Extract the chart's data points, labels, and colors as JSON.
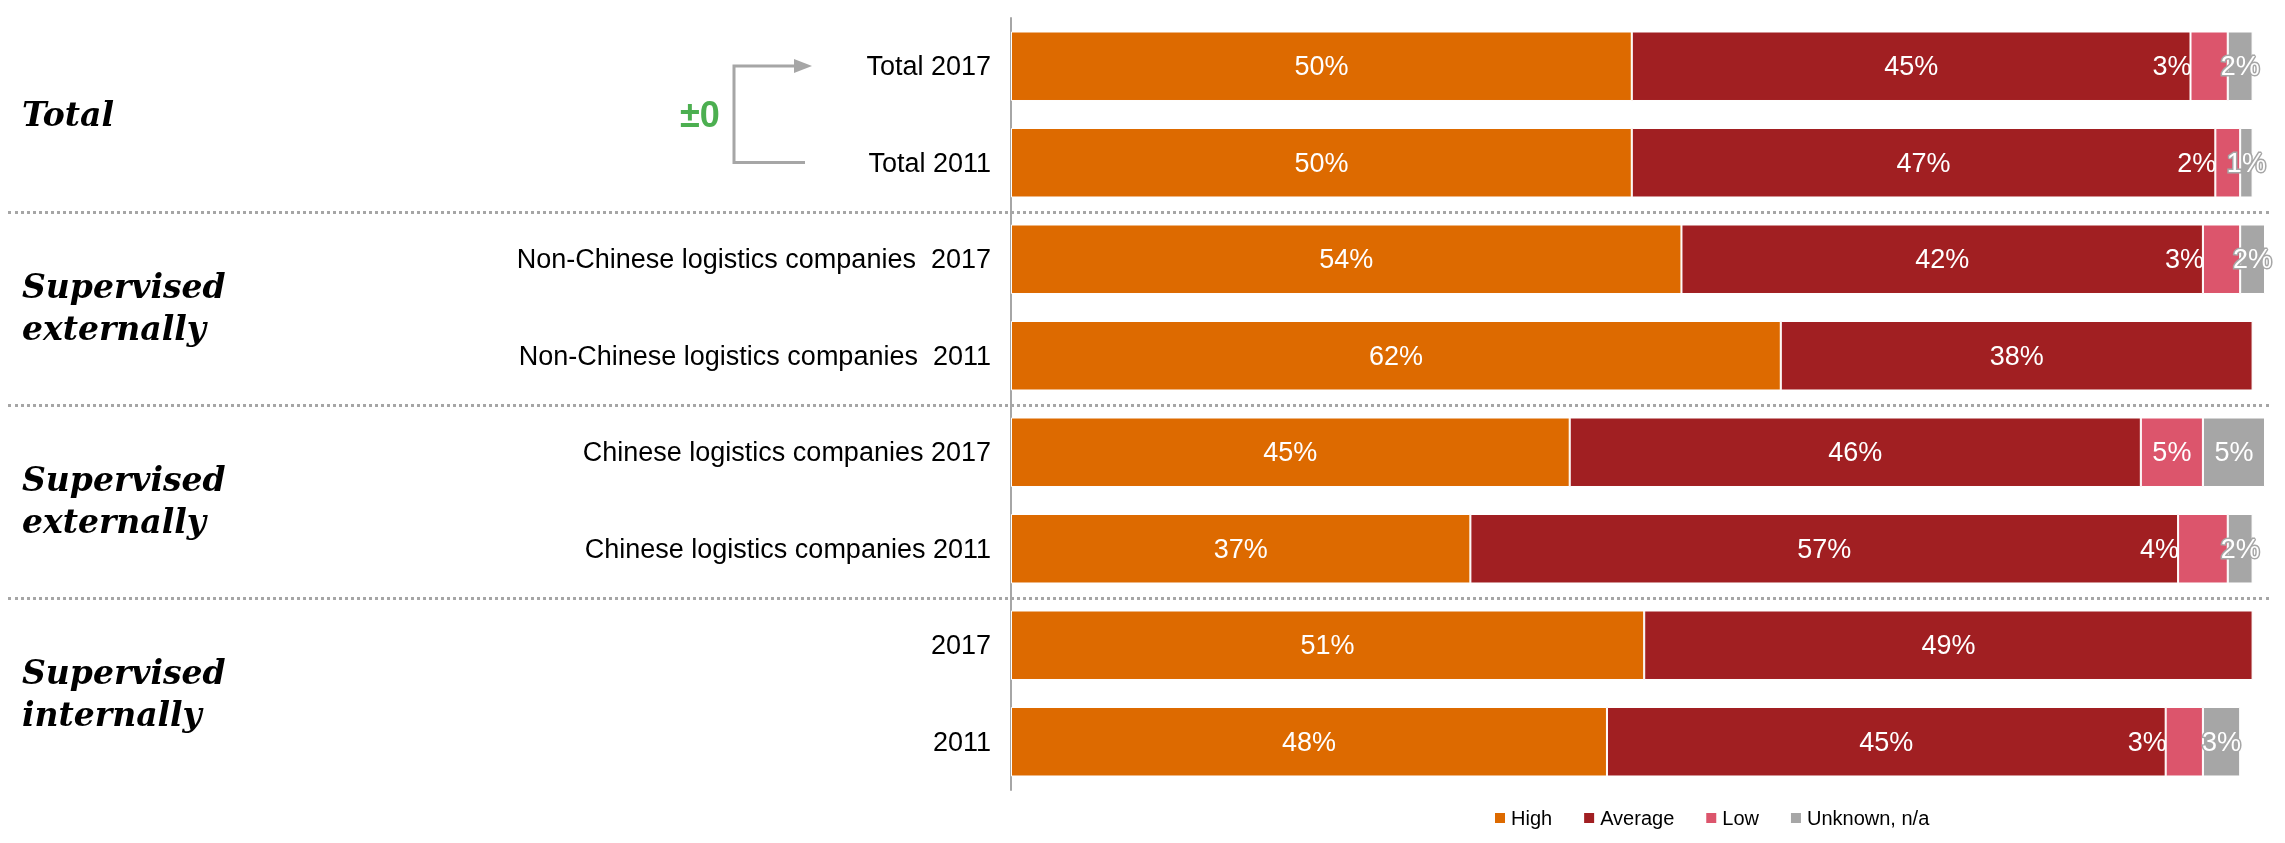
{
  "chart_data": {
    "type": "bar",
    "orientation": "horizontal",
    "stacked": true,
    "legend": "bottom",
    "categories": [
      "Total 2017",
      "Total 2011",
      "Non-Chinese logistics companies  2017",
      "Non-Chinese logistics companies  2011",
      "Chinese logistics companies 2017",
      "Chinese logistics companies 2011",
      "2017",
      "2011"
    ],
    "series": [
      {
        "name": "High",
        "color": "#dd6a00",
        "values": [
          50,
          50,
          54,
          62,
          45,
          37,
          51,
          48
        ],
        "value_labels": [
          "50%",
          "50%",
          "54%",
          "62%",
          "45%",
          "37%",
          "51%",
          "48%"
        ]
      },
      {
        "name": "Average",
        "color": "#a11f22",
        "values": [
          45,
          47,
          42,
          38,
          46,
          57,
          49,
          45
        ],
        "value_labels": [
          "45%",
          "47%",
          "42%",
          "38%",
          "46%",
          "57%",
          "49%",
          "45%"
        ]
      },
      {
        "name": "Low",
        "color": "#dc556c",
        "values": [
          3,
          2,
          3,
          null,
          5,
          4,
          null,
          3
        ],
        "value_labels": [
          "3%",
          "2%",
          "3%",
          null,
          "5%",
          "4%",
          null,
          "3%"
        ]
      },
      {
        "name": "Unknown, n/a",
        "color": "#a6a6a6",
        "values": [
          2,
          1,
          2,
          null,
          5,
          2,
          null,
          3
        ],
        "value_labels": [
          "2%",
          "1%",
          "2%",
          null,
          "5%",
          "2%",
          null,
          "3%"
        ]
      }
    ],
    "annotations": [
      "Total",
      "Supervised externally",
      "Supervised externally",
      "Supervised internally",
      "±0"
    ]
  }
}
